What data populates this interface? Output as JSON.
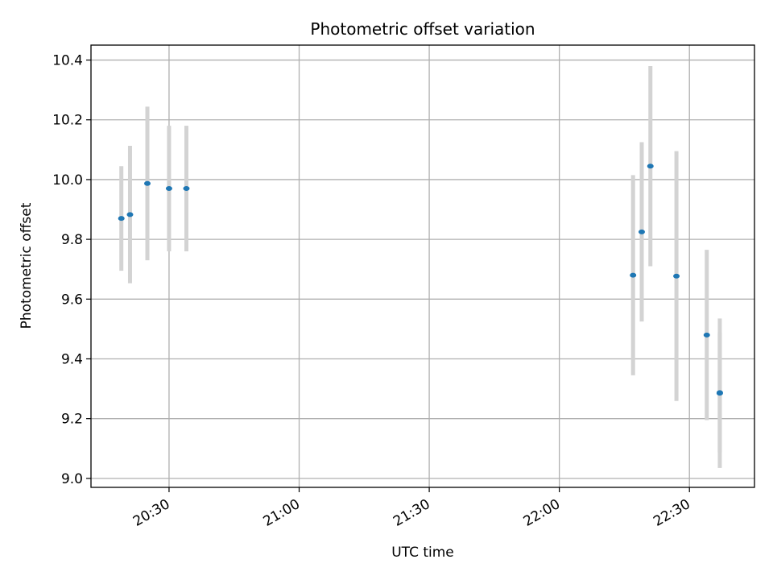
{
  "chart_data": {
    "type": "scatter",
    "title": "Photometric offset variation",
    "xlabel": "UTC time",
    "ylabel": "Photometric offset",
    "x_is_time": true,
    "xlim": [
      "20:12",
      "22:45"
    ],
    "ylim": [
      8.97,
      10.45
    ],
    "x_ticks": [
      "20:30",
      "21:00",
      "21:30",
      "22:00",
      "22:30"
    ],
    "y_ticks": [
      "9.0",
      "9.2",
      "9.4",
      "9.6",
      "9.8",
      "10.0",
      "10.2",
      "10.4"
    ],
    "grid": true,
    "colors": {
      "point": "#1f77b4",
      "errorbar": "#d3d3d3",
      "grid": "#b0b0b0"
    },
    "series": [
      {
        "points": [
          {
            "x": "20:19",
            "y": 9.87,
            "err": 0.175
          },
          {
            "x": "20:21",
            "y": 9.883,
            "err": 0.23
          },
          {
            "x": "20:25",
            "y": 9.987,
            "err": 0.257
          },
          {
            "x": "20:30",
            "y": 9.97,
            "err": 0.21
          },
          {
            "x": "20:34",
            "y": 9.97,
            "err": 0.21
          },
          {
            "x": "22:17",
            "y": 9.68,
            "err": 0.335
          },
          {
            "x": "22:19",
            "y": 9.825,
            "err": 0.3
          },
          {
            "x": "22:21",
            "y": 10.045,
            "err": 0.335
          },
          {
            "x": "22:27",
            "y": 9.677,
            "err": 0.418
          },
          {
            "x": "22:34",
            "y": 9.48,
            "err": 0.285
          },
          {
            "x": "22:37",
            "y": 9.287,
            "err": 0.2
          },
          {
            "x": "22:37",
            "y": 9.285,
            "err": 0.25
          }
        ]
      }
    ]
  }
}
